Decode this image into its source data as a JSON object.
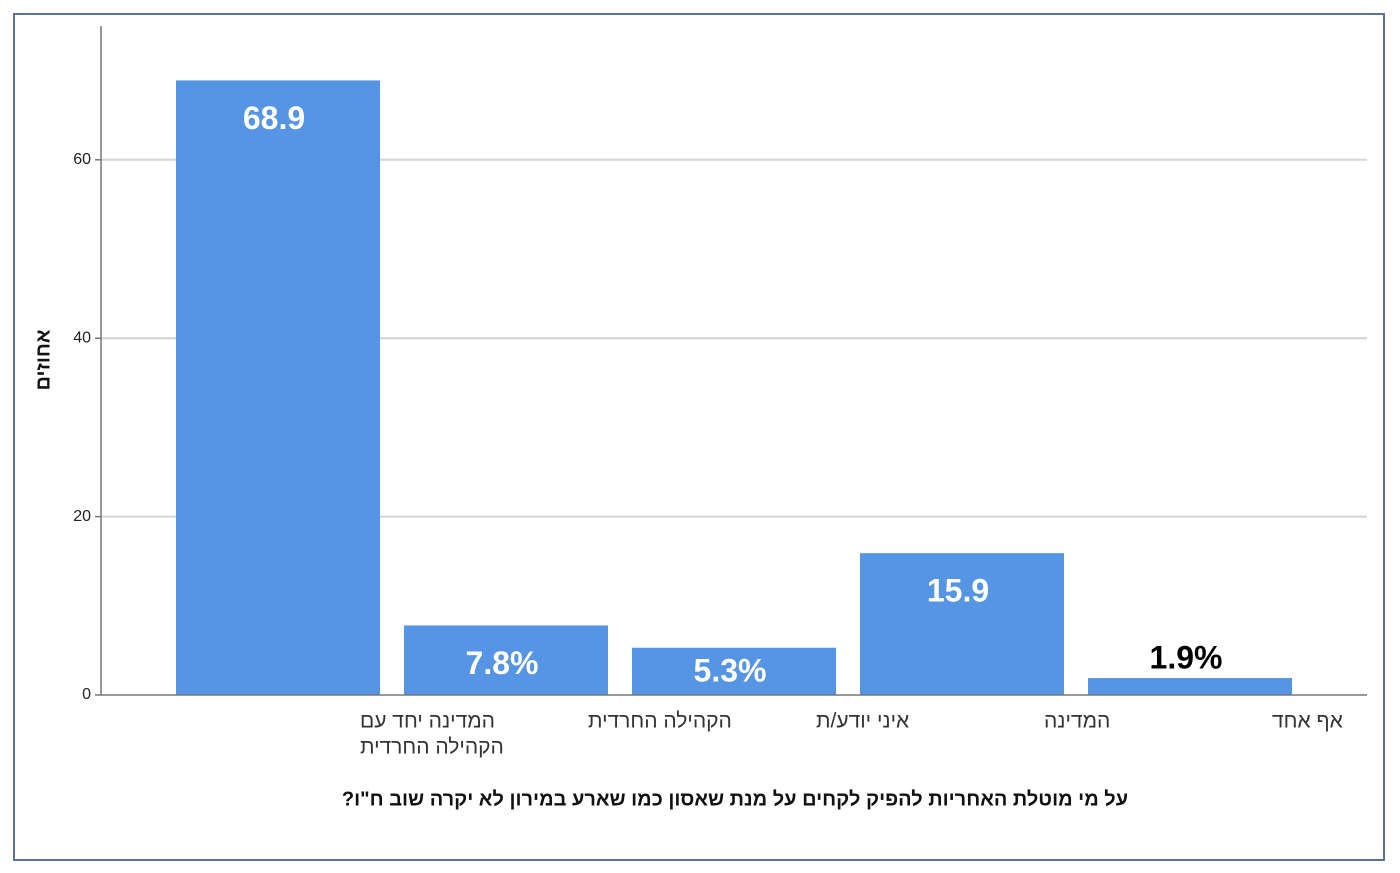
{
  "chart_data": {
    "type": "bar",
    "categories": [
      [
        "המדינה יחד עם",
        "הקהילה החרדית"
      ],
      [
        "הקהילה החרדית"
      ],
      [
        "איני יודע/ת"
      ],
      [
        "המדינה"
      ],
      [
        "אף אחד"
      ]
    ],
    "values": [
      68.9,
      7.8,
      5.3,
      15.9,
      1.9
    ],
    "data_labels": [
      "68.9",
      "7.8%",
      "5.3%",
      "15.9",
      "1.9%"
    ],
    "xlabel": "על מי מוטלת האחריות להפיק לקחים על מנת שאסון כמו שארע במירון לא יקרה שוב ח\"ו?",
    "ylabel": "אחוזים",
    "ylim": [
      0,
      75
    ],
    "yticks": [
      0,
      20,
      40,
      60
    ],
    "grid": true,
    "bar_color": "#5595e3",
    "gridline_color": "#d4d4d4",
    "axis_color": "#777777",
    "data_label_color_inside": "#ffffff",
    "data_label_color_outside": "#000000"
  }
}
